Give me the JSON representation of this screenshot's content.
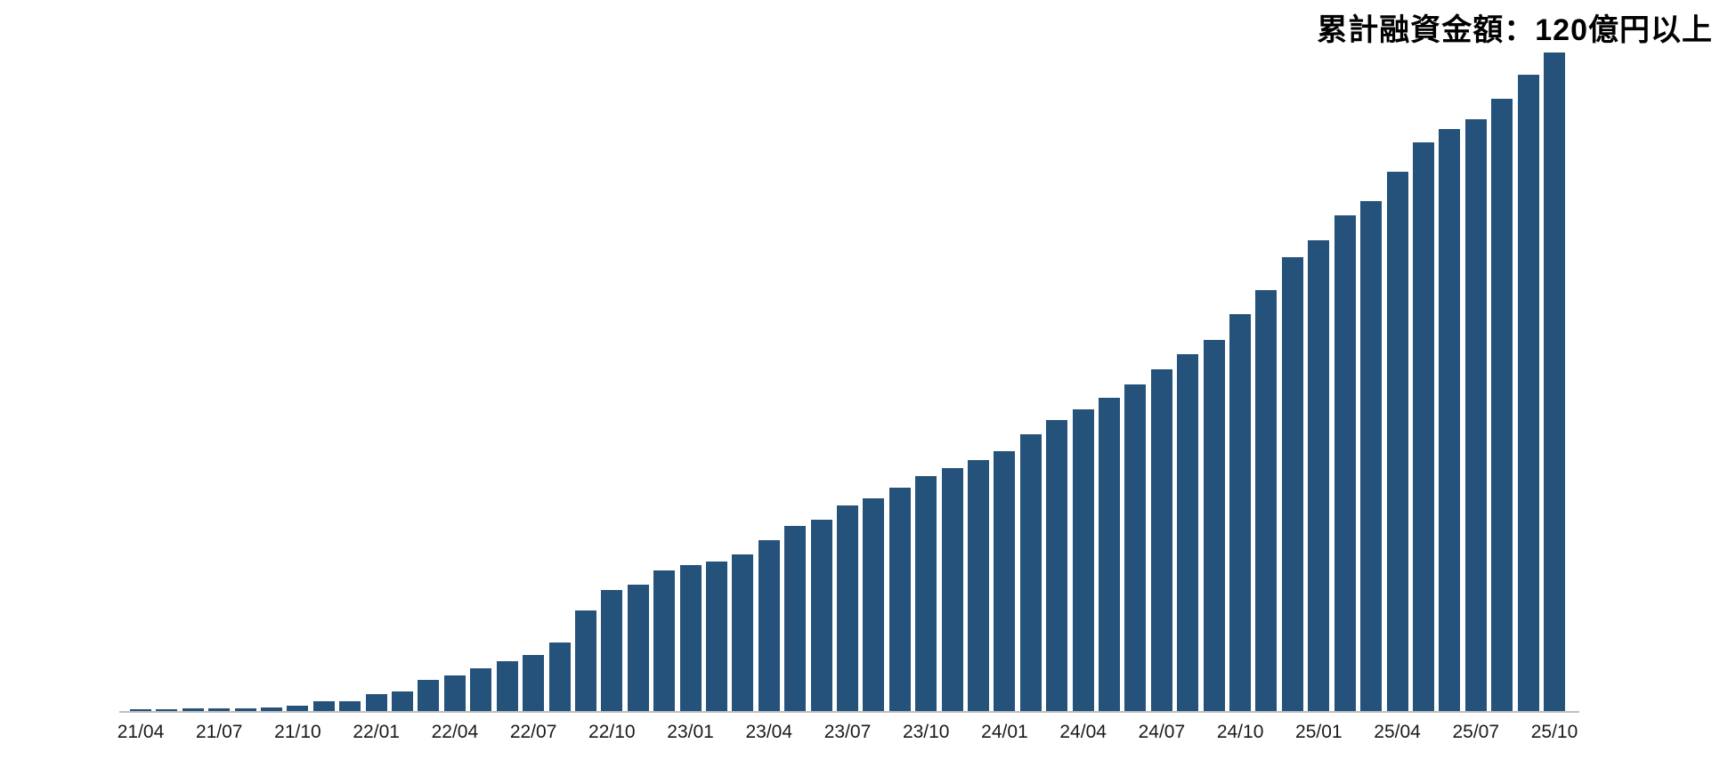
{
  "annotation": {
    "text": "累計融資金額：120億円以上"
  },
  "chart_data": {
    "type": "bar",
    "title": "累計融資金額：120億円以上",
    "xlabel": "",
    "ylabel": "",
    "unit": "億円",
    "legend_position": "none",
    "grid": false,
    "y_axis_visible": false,
    "ylim": [
      0,
      121
    ],
    "x_tick_every": 3,
    "bar_color": "#24527A",
    "axis_line_color": "#BFBFBF",
    "tick_label_color": "#1a1a1a",
    "title_color": "#000000",
    "categories": [
      "21/04",
      "21/05",
      "21/06",
      "21/07",
      "21/08",
      "21/09",
      "21/10",
      "21/11",
      "21/12",
      "22/01",
      "22/02",
      "22/03",
      "22/04",
      "22/05",
      "22/06",
      "22/07",
      "22/08",
      "22/09",
      "22/10",
      "22/11",
      "22/12",
      "23/01",
      "23/02",
      "23/03",
      "23/04",
      "23/05",
      "23/06",
      "23/07",
      "23/08",
      "23/09",
      "23/10",
      "23/11",
      "23/12",
      "24/01",
      "24/02",
      "24/03",
      "24/04",
      "24/05",
      "24/06",
      "24/07",
      "24/08",
      "24/09",
      "24/10",
      "24/11",
      "24/12",
      "25/01",
      "25/02",
      "25/03",
      "25/04",
      "25/05",
      "25/06",
      "25/07",
      "25/08",
      "25/09",
      "25/10"
    ],
    "values": [
      0.5,
      0.5,
      0.7,
      0.7,
      0.7,
      0.8,
      1.1,
      1.9,
      1.9,
      3.2,
      3.8,
      5.8,
      6.7,
      8.0,
      9.3,
      10.3,
      12.6,
      18.5,
      22.2,
      23.1,
      25.8,
      26.7,
      27.4,
      28.7,
      31.2,
      33.9,
      34.9,
      37.6,
      38.8,
      40.8,
      42.9,
      44.3,
      45.9,
      47.4,
      50.5,
      53.1,
      55.0,
      57.2,
      59.6,
      62.3,
      65.1,
      67.7,
      72.4,
      76.8,
      82.7,
      85.9,
      90.3,
      93.0,
      98.3,
      103.6,
      106.1,
      107.9,
      111.6,
      116.0,
      120.0
    ],
    "x_tick_labels_shown": [
      "21/04",
      "21/07",
      "21/10",
      "22/01",
      "22/04",
      "22/07",
      "22/10",
      "23/01",
      "23/04",
      "23/07",
      "23/10",
      "24/01",
      "24/04",
      "24/07",
      "24/10",
      "25/01",
      "25/04",
      "25/07",
      "25/10"
    ]
  }
}
